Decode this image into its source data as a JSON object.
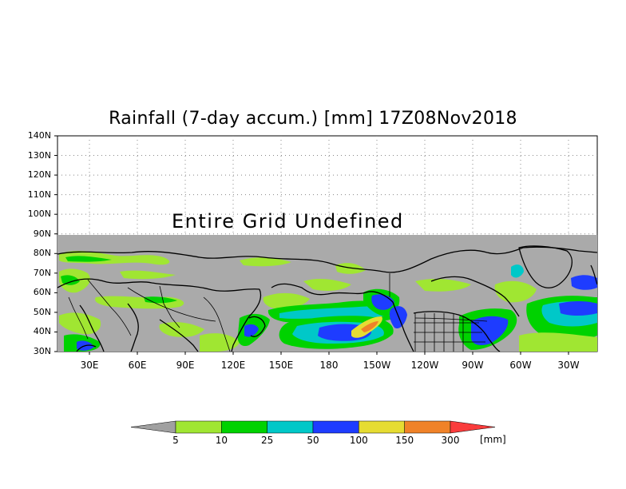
{
  "title": "Rainfall (7-day accum.) [mm] 17Z08Nov2018",
  "undefined_note": "Entire Grid Undefined",
  "map": {
    "lat_labels": [
      "140N",
      "130N",
      "120N",
      "110N",
      "100N",
      "90N",
      "80N",
      "70N",
      "60N",
      "50N",
      "40N",
      "30N"
    ],
    "lon_labels": [
      "30E",
      "60E",
      "90E",
      "120E",
      "150E",
      "180",
      "150W",
      "120W",
      "90W",
      "60W",
      "30W"
    ],
    "lat_range": [
      30,
      140
    ],
    "lon_range": [
      10,
      348
    ],
    "undefined_color": "#aaaaaa"
  },
  "colorbar": {
    "levels": [
      "5",
      "10",
      "25",
      "50",
      "100",
      "150",
      "300"
    ],
    "unit": "[mm]",
    "colors": [
      "#a0a0a0",
      "#a0e632",
      "#00d200",
      "#00c8c8",
      "#1e3cff",
      "#e6dc32",
      "#f08228",
      "#fa3c3c"
    ]
  }
}
